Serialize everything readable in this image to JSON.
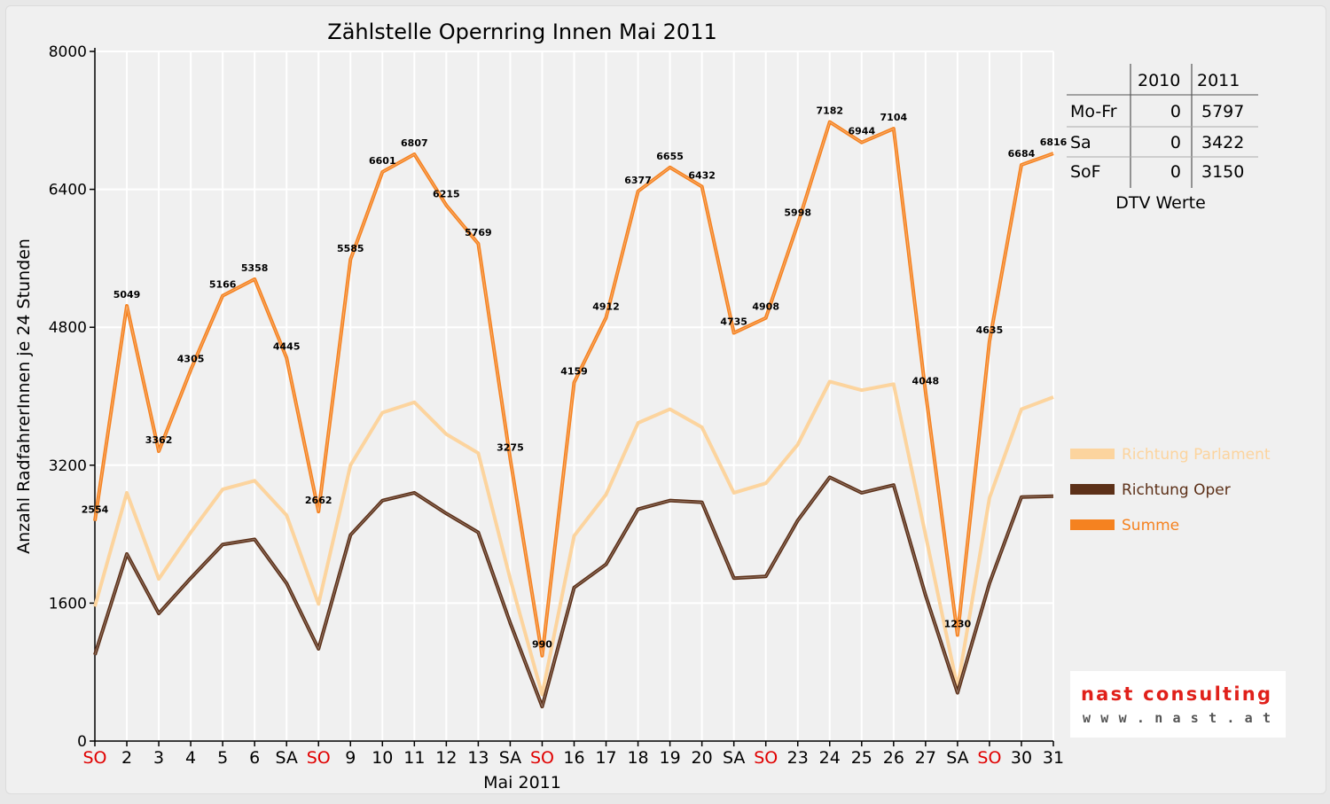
{
  "chart_data": {
    "type": "line",
    "title": "Zählstelle Opernring Innen Mai 2011",
    "xlabel": "Mai 2011",
    "ylabel": "Anzahl RadfahrerInnen je 24 Stunden",
    "ylim": [
      0,
      8000
    ],
    "yticks": [
      0,
      1600,
      3200,
      4800,
      6400,
      8000
    ],
    "grid": true,
    "legend_position": "right",
    "categories": [
      "SO",
      "2",
      "3",
      "4",
      "5",
      "6",
      "SA",
      "SO",
      "9",
      "10",
      "11",
      "12",
      "13",
      "SA",
      "SO",
      "16",
      "17",
      "18",
      "19",
      "20",
      "SA",
      "SO",
      "23",
      "24",
      "25",
      "26",
      "27",
      "SA",
      "SO",
      "30",
      "31"
    ],
    "weekend_categories": [
      "SO"
    ],
    "series": [
      {
        "name": "Richtung Parlament",
        "color": "#fcd49e",
        "values": [
          1560,
          2880,
          1880,
          2420,
          2920,
          3020,
          2620,
          1590,
          3200,
          3810,
          3930,
          3560,
          3340,
          1880,
          540,
          2380,
          2860,
          3690,
          3850,
          3640,
          2880,
          2990,
          3440,
          4170,
          4070,
          4140,
          2390,
          620,
          2820,
          3850,
          3990
        ]
      },
      {
        "name": "Richtung Oper",
        "color": "#5c3018",
        "values": [
          1000,
          2170,
          1480,
          1890,
          2280,
          2340,
          1830,
          1070,
          2390,
          2790,
          2880,
          2640,
          2420,
          1370,
          400,
          1780,
          2050,
          2690,
          2790,
          2770,
          1890,
          1910,
          2560,
          3060,
          2880,
          2970,
          1690,
          560,
          1830,
          2830,
          2840
        ]
      },
      {
        "name": "Summe",
        "color": "#f58220",
        "values": [
          2554,
          5049,
          3362,
          4305,
          5166,
          5358,
          4445,
          2662,
          5585,
          6601,
          6807,
          6215,
          5769,
          3275,
          990,
          4159,
          4912,
          6377,
          6655,
          6432,
          4735,
          4908,
          5998,
          7182,
          6944,
          7104,
          4048,
          1230,
          4635,
          6684,
          6816
        ]
      }
    ],
    "data_labels": [
      "2554",
      "5049",
      "3362",
      "4305",
      "5166",
      "5358",
      "4445",
      "2662",
      "5585",
      "6601",
      "6807",
      "6215",
      "5769",
      "3275",
      "990",
      "4159",
      "4912",
      "6377",
      "6655",
      "6432",
      "4735",
      "4908",
      "5998",
      "7182",
      "6944",
      "7104",
      "4048",
      "1230",
      "4635",
      "6684",
      "6816"
    ]
  },
  "dtv_table": {
    "headers": [
      "",
      "2010",
      "2011"
    ],
    "rows": [
      {
        "label": "Mo-Fr",
        "v2010": "0",
        "v2011": "5797"
      },
      {
        "label": "Sa",
        "v2010": "0",
        "v2011": "3422"
      },
      {
        "label": "SoF",
        "v2010": "0",
        "v2011": "3150"
      }
    ],
    "caption": "DTV Werte"
  },
  "logo": {
    "brand": "nast consulting",
    "url": "w w w . n a s t . a t",
    "brand_color": "#e0201a",
    "url_color": "#555555"
  },
  "colors": {
    "weekend_tick": "#e00000",
    "grid": "#ffffff",
    "background": "#f0f0f0"
  }
}
